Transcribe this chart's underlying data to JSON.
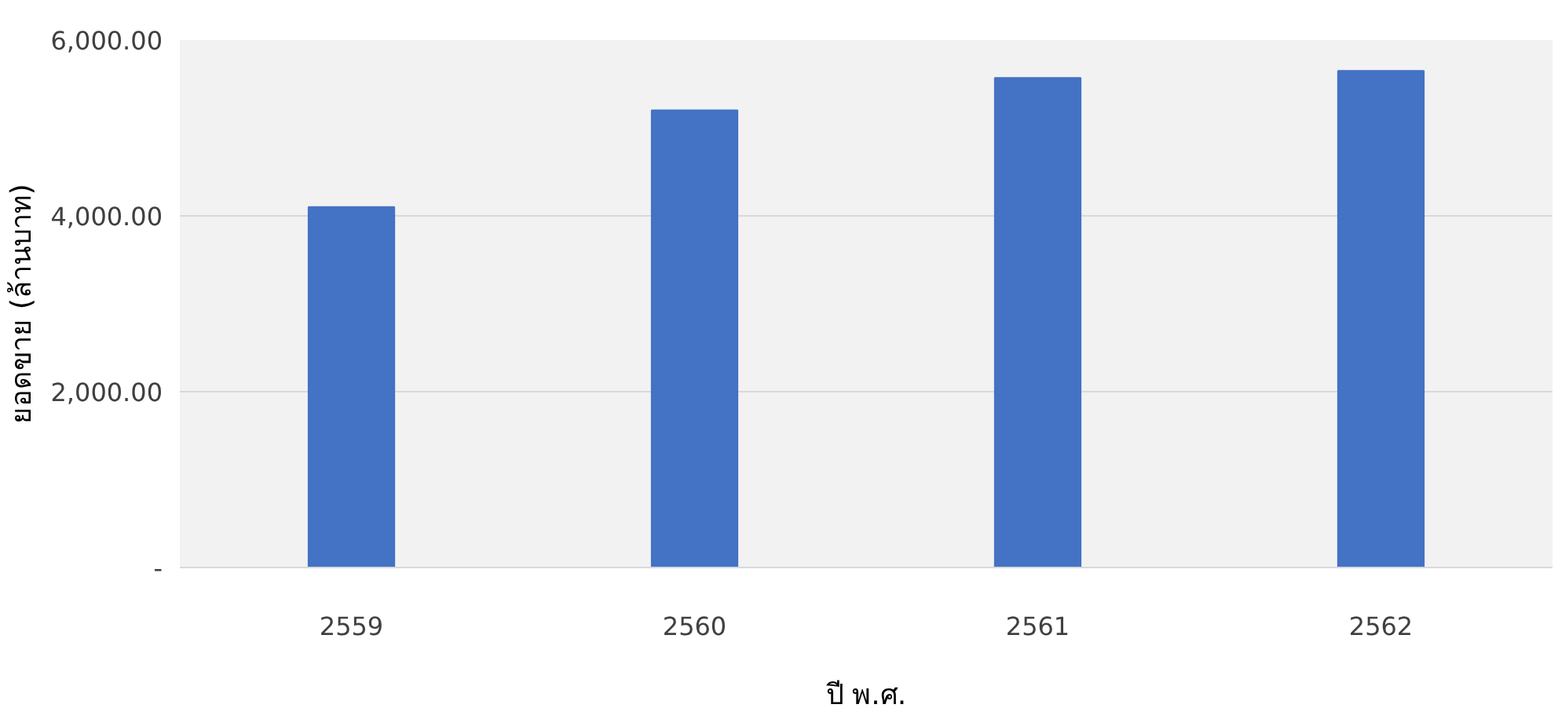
{
  "chart_data": {
    "type": "bar",
    "xlabel": "ปี พ.ศ.",
    "ylabel": "ยอดขาย (ล้านบาท)",
    "categories": [
      "2559",
      "2560",
      "2561",
      "2562"
    ],
    "values": [
      4100,
      5200,
      5570,
      5650
    ],
    "color": "#4472c4",
    "ylim": [
      0,
      6000
    ],
    "yticks": [
      {
        "value": 0,
        "label": "-"
      },
      {
        "value": 2000,
        "label": "2,000.00"
      },
      {
        "value": 4000,
        "label": "4,000.00"
      },
      {
        "value": 6000,
        "label": "6,000.00"
      }
    ],
    "grid": "y"
  }
}
